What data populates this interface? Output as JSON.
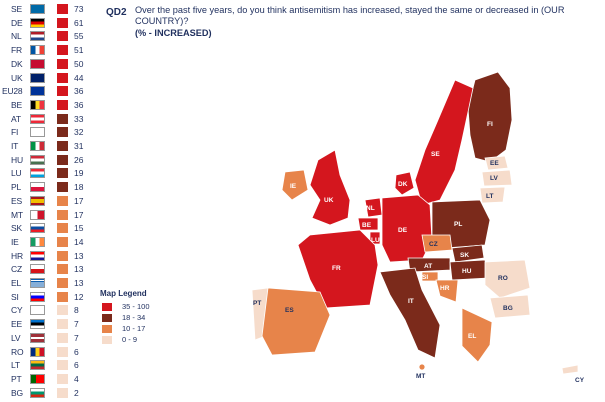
{
  "header": {
    "code": "QD2",
    "question": "Over the past five years, do you think antisemitism has increased, stayed the same or decreased in (OUR COUNTRY)?",
    "subtitle": "(% - INCREASED)"
  },
  "colors": {
    "high": "#d4161e",
    "mid_high": "#7b2a1b",
    "mid": "#e7844a",
    "low": "#f6dccb"
  },
  "rows": [
    {
      "code": "SE",
      "value": "73",
      "cls": "high"
    },
    {
      "code": "DE",
      "value": "61",
      "cls": "high"
    },
    {
      "code": "NL",
      "value": "55",
      "cls": "high"
    },
    {
      "code": "FR",
      "value": "51",
      "cls": "high"
    },
    {
      "code": "DK",
      "value": "50",
      "cls": "high"
    },
    {
      "code": "UK",
      "value": "44",
      "cls": "high"
    },
    {
      "code": "EU28",
      "value": "36",
      "cls": "high"
    },
    {
      "code": "BE",
      "value": "36",
      "cls": "high"
    },
    {
      "code": "AT",
      "value": "33",
      "cls": "mid_high"
    },
    {
      "code": "FI",
      "value": "32",
      "cls": "mid_high"
    },
    {
      "code": "IT",
      "value": "31",
      "cls": "mid_high"
    },
    {
      "code": "HU",
      "value": "26",
      "cls": "mid_high"
    },
    {
      "code": "LU",
      "value": "19",
      "cls": "mid_high"
    },
    {
      "code": "PL",
      "value": "18",
      "cls": "mid_high"
    },
    {
      "code": "ES",
      "value": "17",
      "cls": "mid"
    },
    {
      "code": "MT",
      "value": "17",
      "cls": "mid"
    },
    {
      "code": "SK",
      "value": "15",
      "cls": "mid"
    },
    {
      "code": "IE",
      "value": "14",
      "cls": "mid"
    },
    {
      "code": "HR",
      "value": "13",
      "cls": "mid"
    },
    {
      "code": "CZ",
      "value": "13",
      "cls": "mid"
    },
    {
      "code": "EL",
      "value": "13",
      "cls": "mid"
    },
    {
      "code": "SI",
      "value": "12",
      "cls": "mid"
    },
    {
      "code": "CY",
      "value": "8",
      "cls": "low"
    },
    {
      "code": "EE",
      "value": "7",
      "cls": "low"
    },
    {
      "code": "LV",
      "value": "7",
      "cls": "low"
    },
    {
      "code": "RO",
      "value": "6",
      "cls": "low"
    },
    {
      "code": "LT",
      "value": "6",
      "cls": "low"
    },
    {
      "code": "PT",
      "value": "4",
      "cls": "low"
    },
    {
      "code": "BG",
      "value": "2",
      "cls": "low"
    }
  ],
  "legend": {
    "title": "Map Legend",
    "items": [
      {
        "label": "35 - 100",
        "cls": "high"
      },
      {
        "label": "18 - 34",
        "cls": "mid_high"
      },
      {
        "label": "10 - 17",
        "cls": "mid"
      },
      {
        "label": "0 - 9",
        "cls": "low"
      }
    ]
  },
  "map_labels": {
    "FI": "FI",
    "SE": "SE",
    "EE": "EE",
    "LV": "LV",
    "LT": "LT",
    "DK": "DK",
    "IE": "IE",
    "UK": "UK",
    "NL": "NL",
    "BE": "BE",
    "LU": "LU",
    "DE": "DE",
    "PL": "PL",
    "CZ": "CZ",
    "SK": "SK",
    "AT": "AT",
    "HU": "HU",
    "SI": "SI",
    "HR": "HR",
    "RO": "RO",
    "BG": "BG",
    "FR": "FR",
    "IT": "IT",
    "PT": "PT",
    "ES": "ES",
    "EL": "EL",
    "MT": "MT",
    "CY": "CY"
  }
}
